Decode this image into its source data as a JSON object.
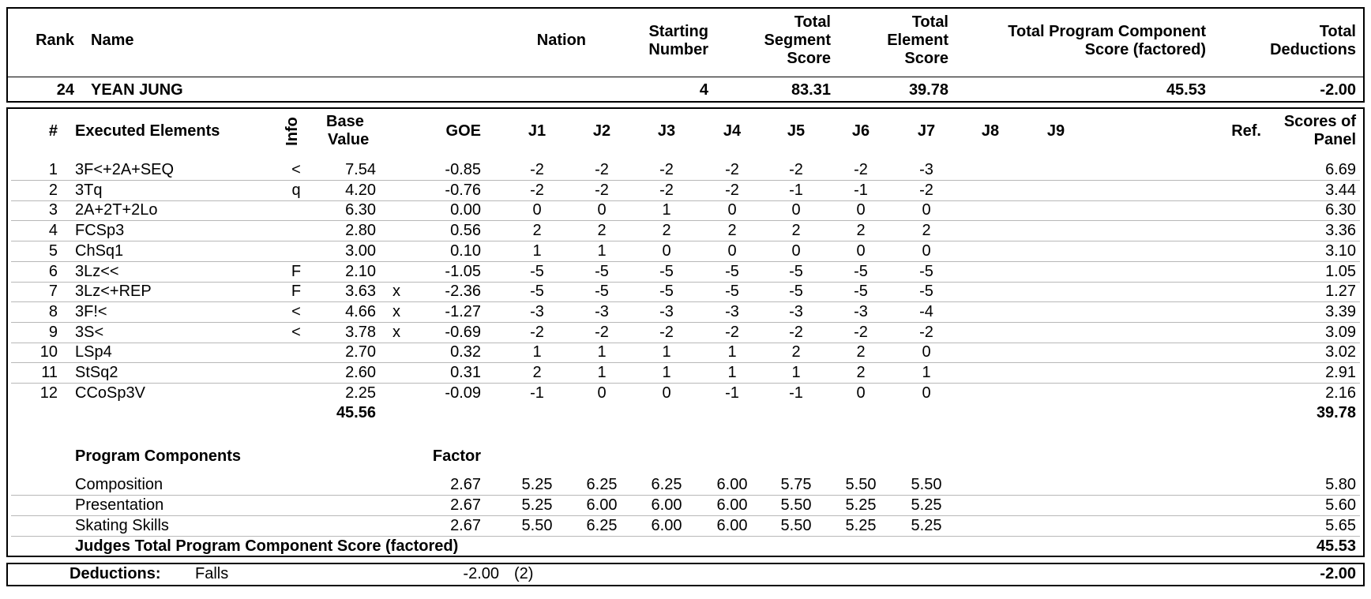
{
  "header": {
    "labels": {
      "rank": "Rank",
      "name": "Name",
      "nation": "Nation",
      "starting_number": [
        "Starting",
        "Number"
      ],
      "total_segment_score": [
        "Total",
        "Segment",
        "Score"
      ],
      "total_element_score": [
        "Total",
        "Element",
        "Score"
      ],
      "total_pcs": [
        "Total Program Component",
        "Score (factored)"
      ],
      "total_deductions": [
        "Total",
        "Deductions"
      ]
    },
    "values": {
      "rank": "24",
      "name": "YEAN JUNG",
      "nation": "",
      "starting_number": "4",
      "total_segment_score": "83.31",
      "total_element_score": "39.78",
      "total_pcs": "45.53",
      "total_deductions": "-2.00"
    }
  },
  "elements": {
    "columns": {
      "num": "#",
      "executed": "Executed Elements",
      "info": "Info",
      "base_value": [
        "Base",
        "Value"
      ],
      "goe": "GOE",
      "judges": [
        "J1",
        "J2",
        "J3",
        "J4",
        "J5",
        "J6",
        "J7",
        "J8",
        "J9"
      ],
      "ref": "Ref.",
      "scores_of_panel": [
        "Scores of",
        "Panel"
      ]
    },
    "rows": [
      {
        "num": "1",
        "name": "3F<+2A+SEQ",
        "info": "<",
        "base": "7.54",
        "x": "",
        "goe": "-0.85",
        "judges": [
          "-2",
          "-2",
          "-2",
          "-2",
          "-2",
          "-2",
          "-3"
        ],
        "score": "6.69"
      },
      {
        "num": "2",
        "name": "3Tq",
        "info": "q",
        "base": "4.20",
        "x": "",
        "goe": "-0.76",
        "judges": [
          "-2",
          "-2",
          "-2",
          "-2",
          "-1",
          "-1",
          "-2"
        ],
        "score": "3.44"
      },
      {
        "num": "3",
        "name": "2A+2T+2Lo",
        "info": "",
        "base": "6.30",
        "x": "",
        "goe": "0.00",
        "judges": [
          "0",
          "0",
          "1",
          "0",
          "0",
          "0",
          "0"
        ],
        "score": "6.30"
      },
      {
        "num": "4",
        "name": "FCSp3",
        "info": "",
        "base": "2.80",
        "x": "",
        "goe": "0.56",
        "judges": [
          "2",
          "2",
          "2",
          "2",
          "2",
          "2",
          "2"
        ],
        "score": "3.36"
      },
      {
        "num": "5",
        "name": "ChSq1",
        "info": "",
        "base": "3.00",
        "x": "",
        "goe": "0.10",
        "judges": [
          "1",
          "1",
          "0",
          "0",
          "0",
          "0",
          "0"
        ],
        "score": "3.10"
      },
      {
        "num": "6",
        "name": "3Lz<<",
        "info": "F",
        "base": "2.10",
        "x": "",
        "goe": "-1.05",
        "judges": [
          "-5",
          "-5",
          "-5",
          "-5",
          "-5",
          "-5",
          "-5"
        ],
        "score": "1.05"
      },
      {
        "num": "7",
        "name": "3Lz<+REP",
        "info": "F",
        "base": "3.63",
        "x": "x",
        "goe": "-2.36",
        "judges": [
          "-5",
          "-5",
          "-5",
          "-5",
          "-5",
          "-5",
          "-5"
        ],
        "score": "1.27"
      },
      {
        "num": "8",
        "name": "3F!<",
        "info": "<",
        "base": "4.66",
        "x": "x",
        "goe": "-1.27",
        "judges": [
          "-3",
          "-3",
          "-3",
          "-3",
          "-3",
          "-3",
          "-4"
        ],
        "score": "3.39"
      },
      {
        "num": "9",
        "name": "3S<",
        "info": "<",
        "base": "3.78",
        "x": "x",
        "goe": "-0.69",
        "judges": [
          "-2",
          "-2",
          "-2",
          "-2",
          "-2",
          "-2",
          "-2"
        ],
        "score": "3.09"
      },
      {
        "num": "10",
        "name": "LSp4",
        "info": "",
        "base": "2.70",
        "x": "",
        "goe": "0.32",
        "judges": [
          "1",
          "1",
          "1",
          "1",
          "2",
          "2",
          "0"
        ],
        "score": "3.02"
      },
      {
        "num": "11",
        "name": "StSq2",
        "info": "",
        "base": "2.60",
        "x": "",
        "goe": "0.31",
        "judges": [
          "2",
          "1",
          "1",
          "1",
          "1",
          "2",
          "1"
        ],
        "score": "2.91"
      },
      {
        "num": "12",
        "name": "CCoSp3V",
        "info": "",
        "base": "2.25",
        "x": "",
        "goe": "-0.09",
        "judges": [
          "-1",
          "0",
          "0",
          "-1",
          "-1",
          "0",
          "0"
        ],
        "score": "2.16"
      }
    ],
    "totals": {
      "base": "45.56",
      "score": "39.78"
    }
  },
  "components": {
    "title": "Program Components",
    "factor_label": "Factor",
    "rows": [
      {
        "name": "Composition",
        "factor": "2.67",
        "judges": [
          "5.25",
          "6.25",
          "6.25",
          "6.00",
          "5.75",
          "5.50",
          "5.50"
        ],
        "score": "5.80"
      },
      {
        "name": "Presentation",
        "factor": "2.67",
        "judges": [
          "5.25",
          "6.00",
          "6.00",
          "6.00",
          "5.50",
          "5.25",
          "5.25"
        ],
        "score": "5.60"
      },
      {
        "name": "Skating Skills",
        "factor": "2.67",
        "judges": [
          "5.50",
          "6.25",
          "6.00",
          "6.00",
          "5.50",
          "5.25",
          "5.25"
        ],
        "score": "5.65"
      }
    ],
    "total_label": "Judges Total Program Component Score (factored)",
    "total_value": "45.53"
  },
  "deductions": {
    "label": "Deductions:",
    "type": "Falls",
    "value": "-2.00",
    "count": "(2)",
    "total": "-2.00"
  }
}
